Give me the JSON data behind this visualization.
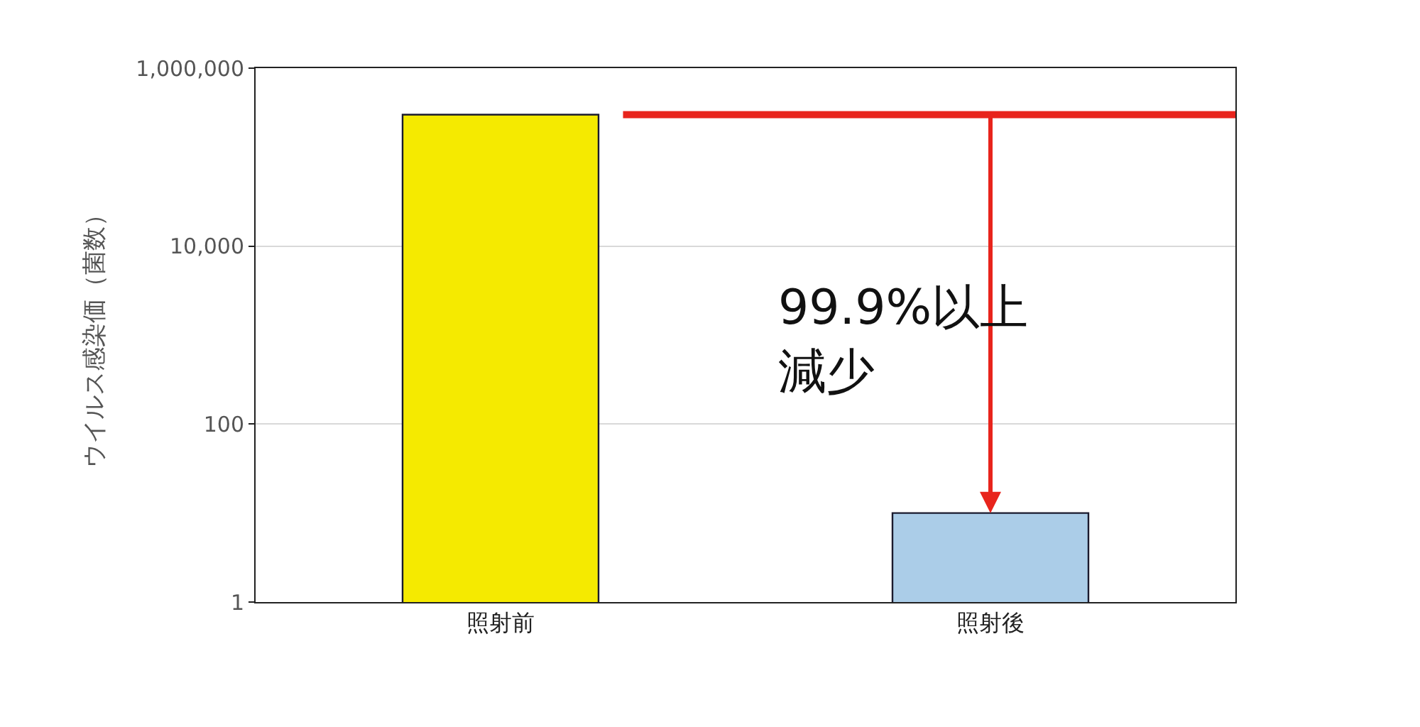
{
  "chart_data": {
    "type": "bar",
    "ylabel": "ウイルス感染価（菌数）",
    "categories": [
      "照射前",
      "照射後"
    ],
    "values": [
      300000,
      10
    ],
    "colors": [
      "#f5ea00",
      "#abcde8"
    ],
    "log": true,
    "ylim": [
      1,
      1000000
    ],
    "yticks": [
      1,
      100,
      {
        "value": 10000,
        "label": "10,000"
      },
      {
        "value": 1000000,
        "label": "1,000,000"
      }
    ],
    "grid": "y",
    "ref_lines": [
      {
        "axis": "y",
        "value": 300000,
        "color": "#e8241c"
      }
    ],
    "annotations": [
      "99.9%以上",
      "減少"
    ]
  }
}
